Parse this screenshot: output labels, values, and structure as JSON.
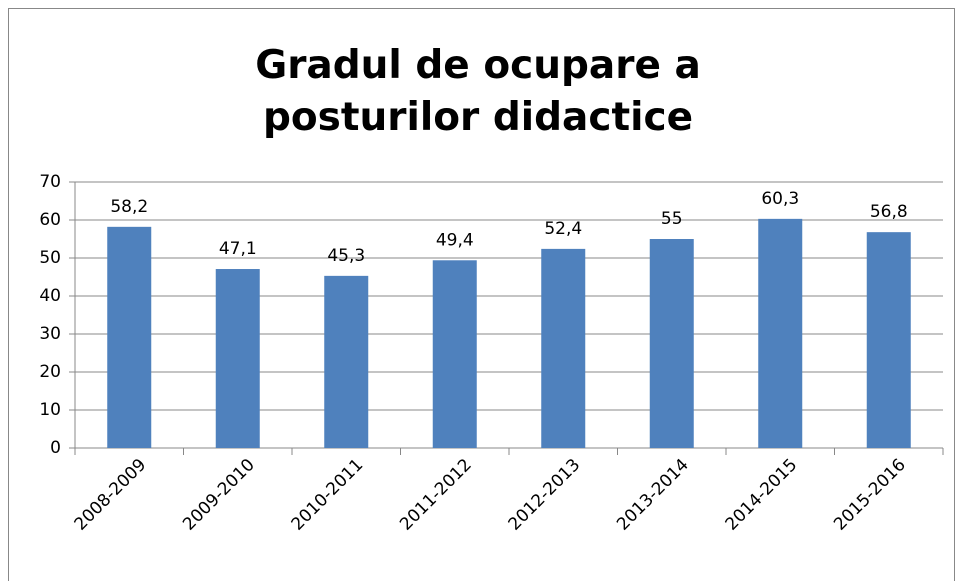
{
  "chart_data": {
    "type": "bar",
    "title": "Gradul de ocupare a posturilor didactice",
    "categories": [
      "2008-2009",
      "2009-2010",
      "2010-2011",
      "2011-2012",
      "2012-2013",
      "2013-2014",
      "2014-2015",
      "2015-2016"
    ],
    "values": [
      58.2,
      47.1,
      45.3,
      49.4,
      52.4,
      55,
      60.3,
      56.8
    ],
    "value_labels": [
      "58,2",
      "47,1",
      "45,3",
      "49,4",
      "52,4",
      "55",
      "60,3",
      "56,8"
    ],
    "color": "#4f81bd",
    "ylim": [
      0,
      70
    ],
    "yticks": [
      0,
      10,
      20,
      30,
      40,
      50,
      60,
      70
    ],
    "grid": true
  }
}
